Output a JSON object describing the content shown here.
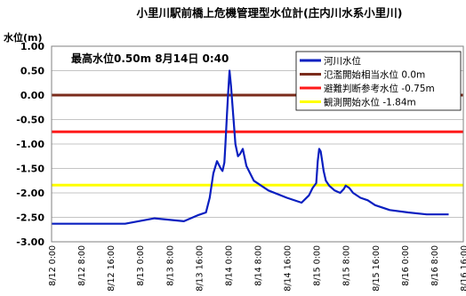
{
  "chart_data": {
    "type": "line",
    "title": "小里川駅前橋上危機管理型水位計(庄内川水系小里川)",
    "ylabel": "水位(m)",
    "annotation": "最高水位0.50m  8月14日  0:40",
    "ylim": [
      -3.0,
      1.0
    ],
    "yticks": [
      "1.00",
      "0.50",
      "0.00",
      "-0.50",
      "-1.00",
      "-1.50",
      "-2.00",
      "-2.50",
      "-3.00"
    ],
    "ytick_values": [
      1.0,
      0.5,
      0.0,
      -0.5,
      -1.0,
      -1.5,
      -2.0,
      -2.5,
      -3.0
    ],
    "xticks": [
      "8/12 0:00",
      "8/12 8:00",
      "8/12 16:00",
      "8/13 0:00",
      "8/13 8:00",
      "8/13 16:00",
      "8/14 0:00",
      "8/14 8:00",
      "8/14 16:00",
      "8/15 0:00",
      "8/15 8:00",
      "8/15 16:00",
      "8/16 0:00",
      "8/16 8:00",
      "8/16 16:00"
    ],
    "x_hours_range": [
      0,
      112
    ],
    "series": [
      {
        "name": "河川水位",
        "color": "#0a1fc0",
        "hours": [
          0,
          12,
          20,
          28,
          36,
          40,
          42,
          43,
          44,
          45,
          46,
          46.5,
          47,
          47.3,
          47.7,
          48,
          48.4,
          48.8,
          49.4,
          50,
          50.7,
          51.3,
          52,
          53,
          55,
          59,
          64,
          68,
          70,
          71,
          72,
          72.4,
          72.8,
          73.2,
          73.6,
          74,
          74.6,
          75.5,
          77,
          78.5,
          79.5,
          80,
          81,
          82,
          84,
          86,
          88,
          92,
          97,
          102,
          108
        ],
        "values": [
          -2.63,
          -2.63,
          -2.63,
          -2.52,
          -2.58,
          -2.45,
          -2.4,
          -2.1,
          -1.6,
          -1.35,
          -1.5,
          -1.55,
          -1.38,
          -1.0,
          -0.4,
          0.0,
          0.5,
          0.2,
          -0.4,
          -1.0,
          -1.25,
          -1.2,
          -1.1,
          -1.45,
          -1.75,
          -1.95,
          -2.1,
          -2.2,
          -2.05,
          -1.9,
          -1.8,
          -1.35,
          -1.1,
          -1.15,
          -1.35,
          -1.55,
          -1.75,
          -1.85,
          -1.95,
          -2.0,
          -1.92,
          -1.85,
          -1.9,
          -2.0,
          -2.1,
          -2.15,
          -2.25,
          -2.35,
          -2.4,
          -2.44,
          -2.44
        ]
      }
    ],
    "thresholds": [
      {
        "name": "氾濫開始相当水位",
        "value_label": "0.0m",
        "value": 0.0,
        "color": "#7b2c1c"
      },
      {
        "name": "避難判断参考水位",
        "value_label": "-0.75m",
        "value": -0.75,
        "color": "#ff1a1a"
      },
      {
        "name": "観測開始水位",
        "value_label": "-1.84m",
        "value": -1.84,
        "color": "#ffff00"
      }
    ],
    "grid": true,
    "legend_position": "top-right"
  }
}
